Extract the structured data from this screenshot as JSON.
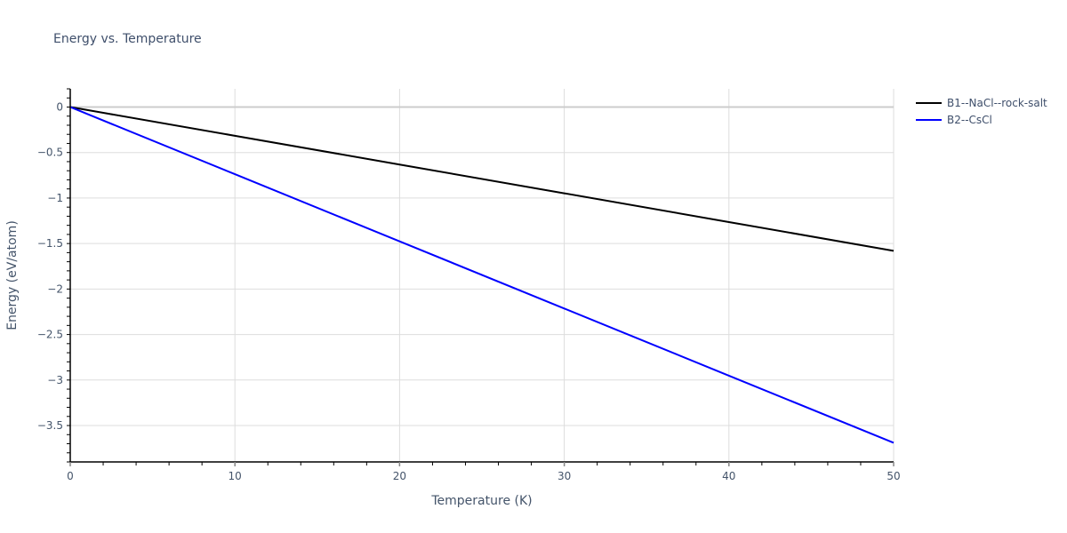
{
  "chart_data": {
    "type": "line",
    "title": "Energy vs. Temperature",
    "xlabel": "Temperature (K)",
    "ylabel": "Energy (eV/atom)",
    "xlim": [
      0,
      50
    ],
    "ylim": [
      -3.9,
      0.2
    ],
    "xticks": [
      0,
      10,
      20,
      30,
      40,
      50
    ],
    "xtick_labels": [
      "0",
      "10",
      "20",
      "30",
      "40",
      "50"
    ],
    "yticks": [
      0,
      -0.5,
      -1,
      -1.5,
      -2,
      -2.5,
      -3,
      -3.5
    ],
    "ytick_labels": [
      "0",
      "−0.5",
      "−1",
      "−1.5",
      "−2",
      "−2.5",
      "−3",
      "−3.5"
    ],
    "grid": true,
    "legend_position": "right-top",
    "series": [
      {
        "name": "B1--NaCl--rock-salt",
        "color": "#000000",
        "x": [
          0,
          10,
          20,
          30,
          40,
          50
        ],
        "values": [
          0,
          -0.316,
          -0.632,
          -0.948,
          -1.264,
          -1.58
        ]
      },
      {
        "name": "B2--CsCl",
        "color": "#0000ff",
        "x": [
          0,
          10,
          20,
          30,
          40,
          50
        ],
        "values": [
          0,
          -0.738,
          -1.476,
          -2.214,
          -2.952,
          -3.69
        ]
      }
    ]
  },
  "legend": {
    "items": [
      {
        "label": "B1--NaCl--rock-salt",
        "color": "#000000"
      },
      {
        "label": "B2--CsCl",
        "color": "#0000ff"
      }
    ]
  }
}
